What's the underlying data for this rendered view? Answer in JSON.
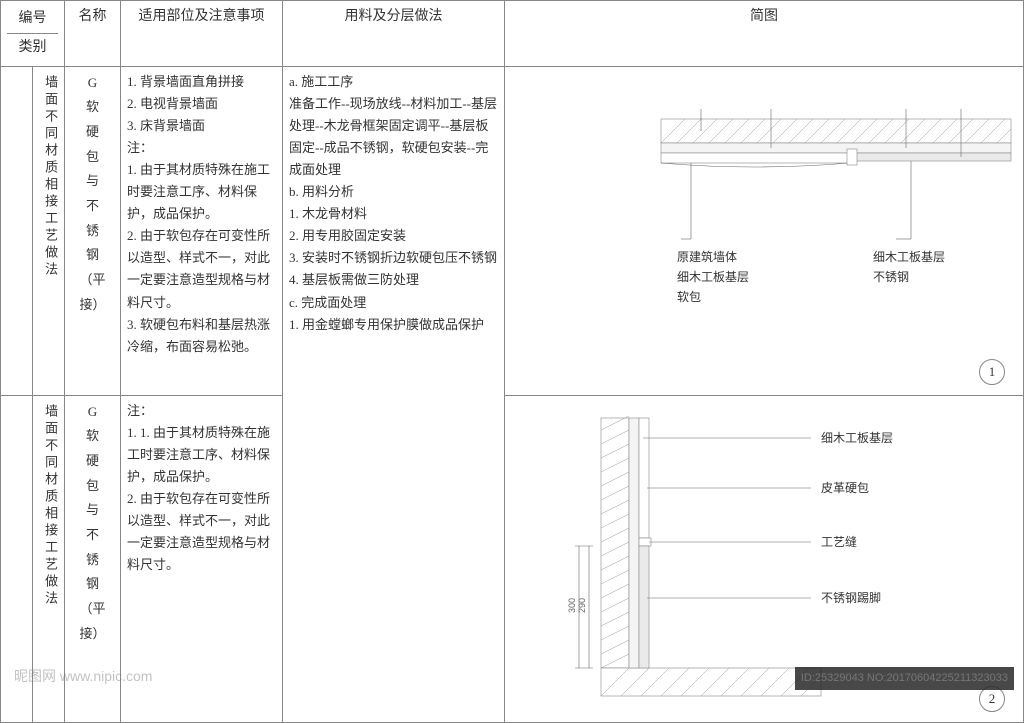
{
  "headers": {
    "no": "编号",
    "category": "类别",
    "name": "名称",
    "scope": "适用部位及注意事项",
    "material": "用料及分层做法",
    "diagram": "简图"
  },
  "rows": [
    {
      "no": "",
      "category": "墙面不同材质相接工艺做法",
      "name_lines": [
        "G",
        "软",
        "硬",
        "包",
        "与",
        "不",
        "锈",
        "钢",
        "",
        "（平接）"
      ],
      "scope": "1. 背景墙面直角拼接\n2. 电视背景墙面\n3. 床背景墙面\n注：\n1. 由于其材质特殊在施工时要注意工序、材料保护，成品保护。\n2. 由于软包存在可变性所以造型、样式不一，对此一定要注意造型规格与材料尺寸。\n3. 软硬包布料和基层热涨冷缩，布面容易松弛。",
      "material": "a. 施工工序\n准备工作--现场放线--材料加工--基层处理--木龙骨框架固定调平--基层板固定--成品不锈钢，软硬包安装--完成面处理\nb. 用料分析\n1. 木龙骨材料\n2. 用专用胶固定安装\n3. 安装时不锈钢折边软硬包压不锈钢\n4. 基层板需做三防处理\nc. 完成面处理\n1. 用金螳螂专用保护膜做成品保护",
      "diagram_num": "1",
      "diagram_labels": {
        "left1": "原建筑墙体",
        "left2": "细木工板基层",
        "left3": "软包",
        "right1": "细木工板基层",
        "right2": "不锈钢"
      }
    },
    {
      "no": "",
      "category": "墙面不同材质相接工艺做法",
      "name_lines": [
        "G",
        "软",
        "硬",
        "包",
        "与",
        "不",
        "锈",
        "钢",
        "",
        "（平接）"
      ],
      "scope": "注：\n1. 1. 由于其材质特殊在施工时要注意工序、材料保护，成品保护。\n2. 由于软包存在可变性所以造型、样式不一，对此一定要注意造型规格与材料尺寸。",
      "material": "",
      "diagram_num": "2",
      "diagram_labels": {
        "l1": "细木工板基层",
        "l2": "皮革硬包",
        "l3": "工艺缝",
        "l4": "不锈钢踢脚"
      },
      "dims": {
        "d1": "290",
        "d2": "300"
      }
    }
  ],
  "watermarks": {
    "left": "昵图网 www.nipic.com",
    "right": "ID:25329043  NO:20170604225211323033"
  }
}
